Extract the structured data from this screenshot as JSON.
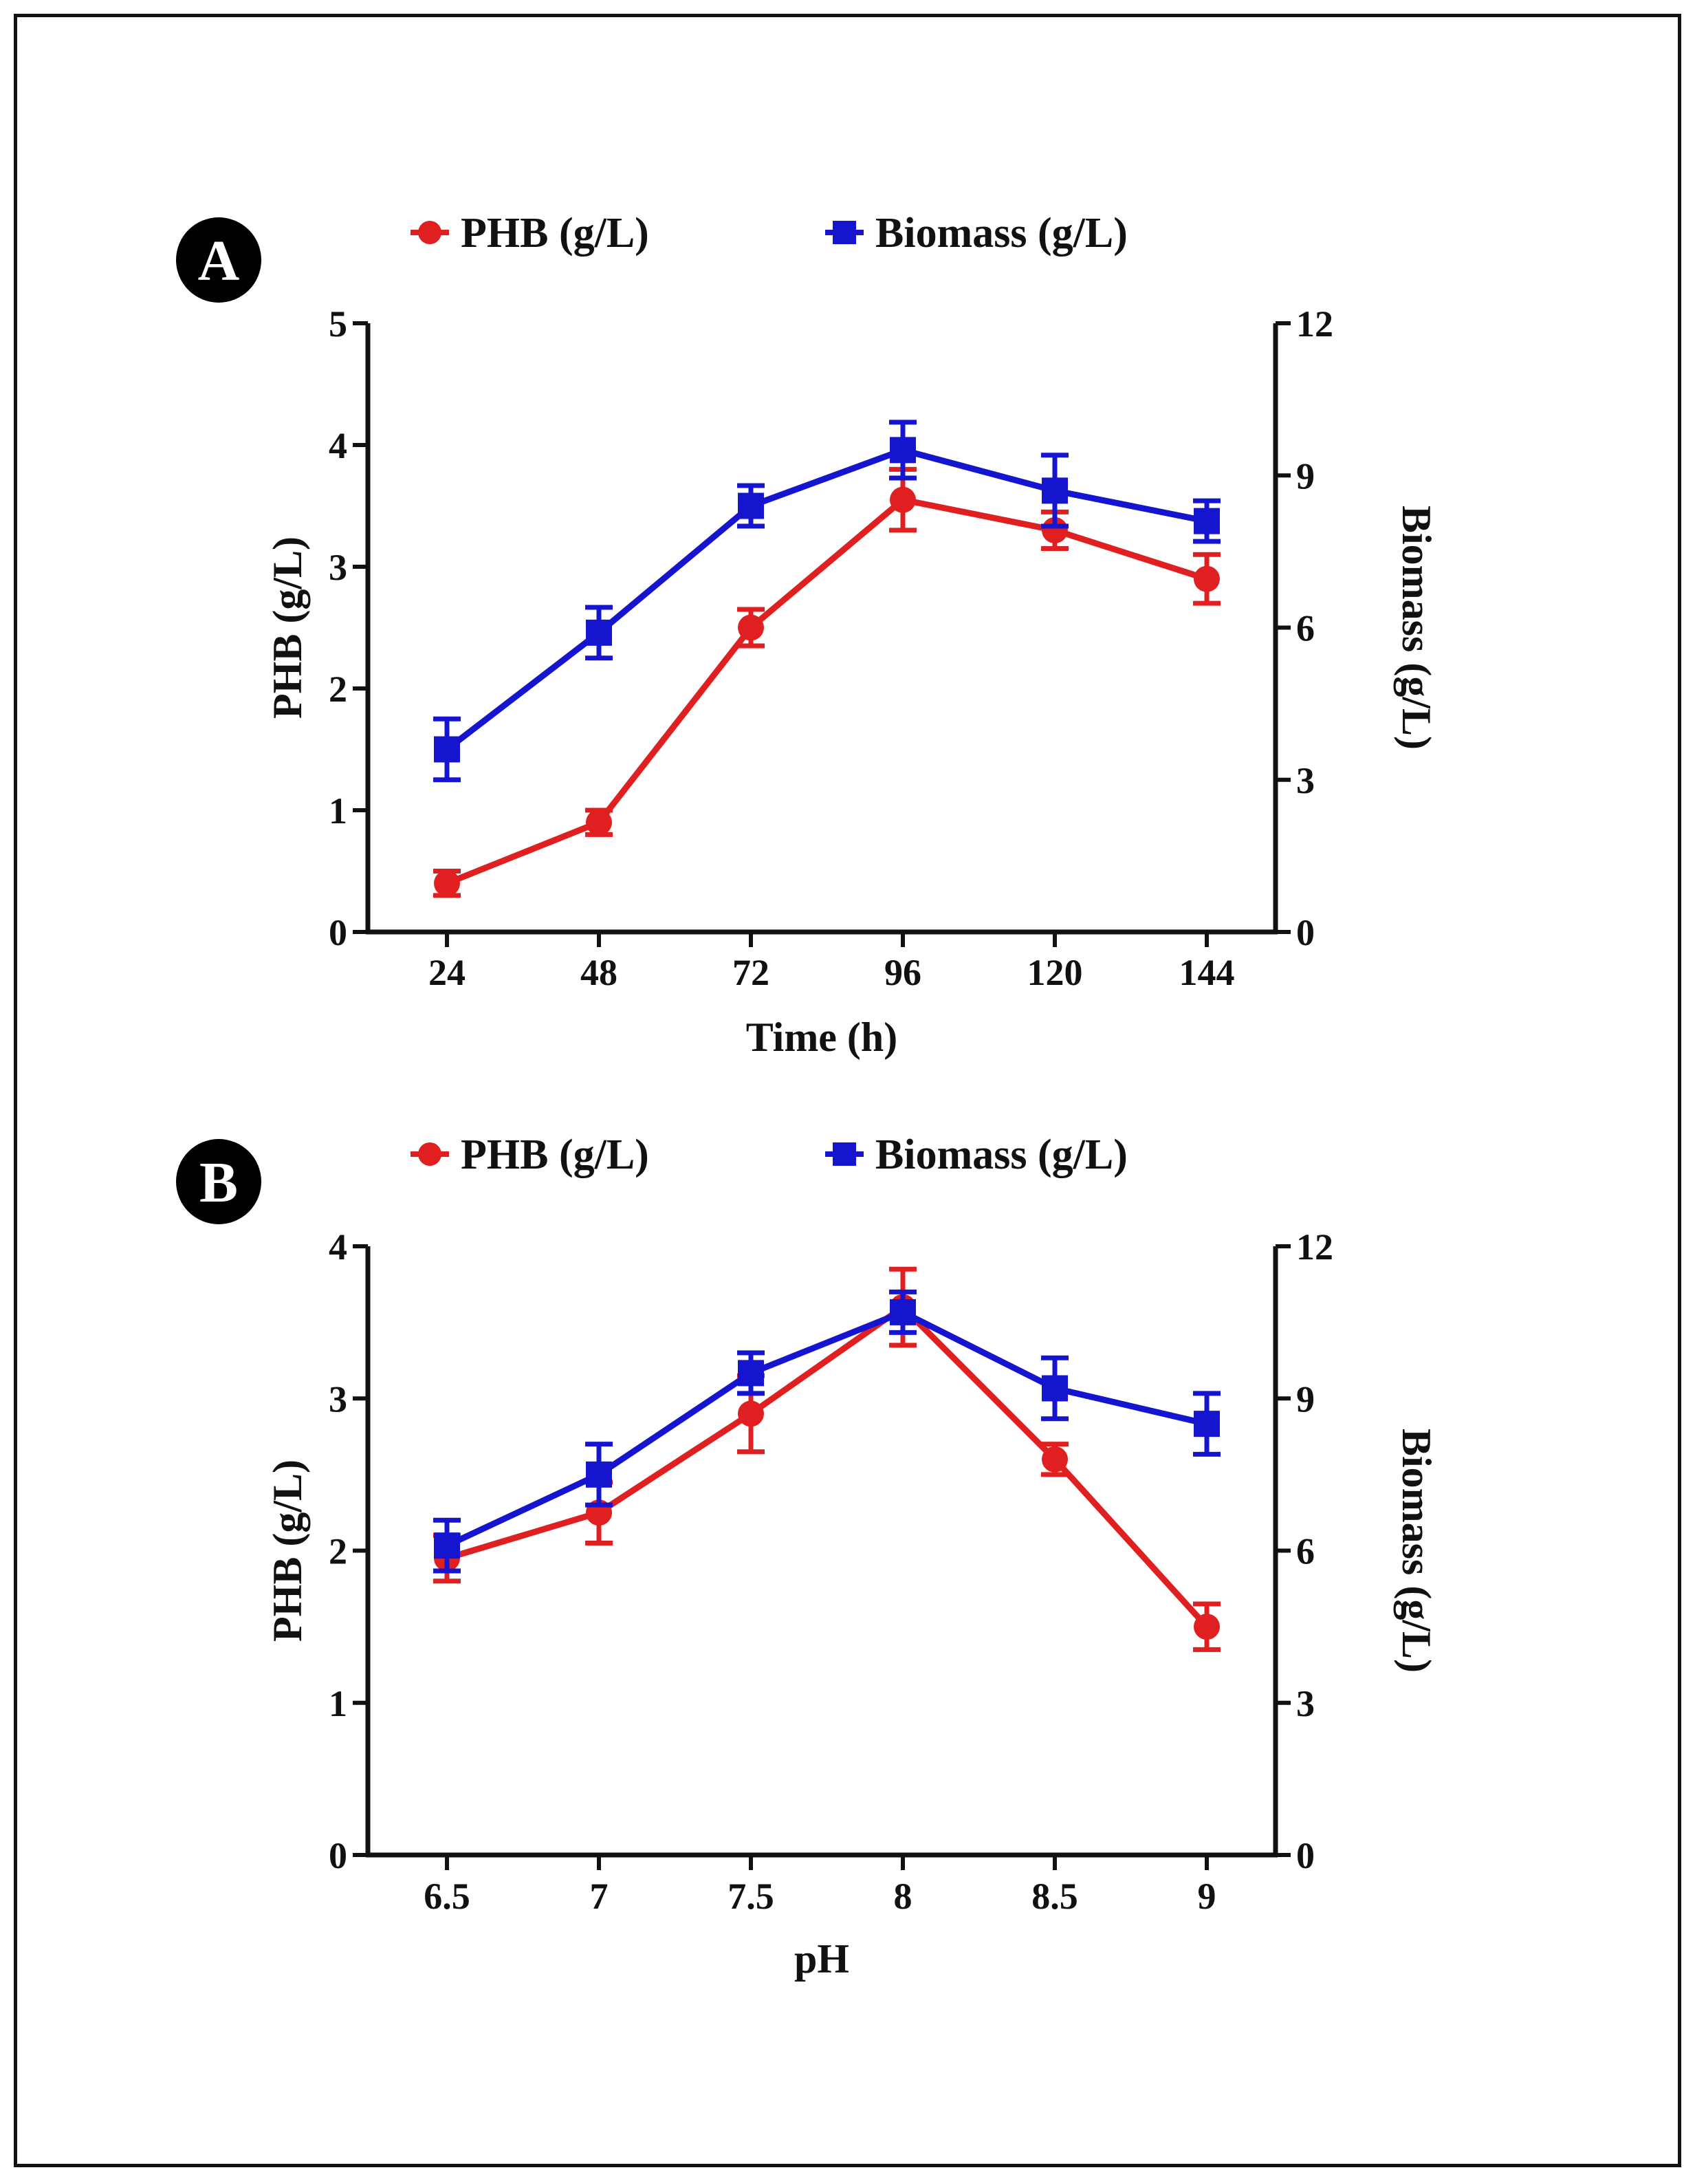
{
  "colors": {
    "phb": "#e02020",
    "biomass": "#1515d0",
    "axis": "#111111"
  },
  "chart_data": [
    {
      "panel_label": "A",
      "type": "line",
      "xlabel": "Time (h)",
      "ylabel": "PHB (g/L)",
      "y2label": "Biomass (g/L)",
      "categories": [
        "24",
        "48",
        "72",
        "96",
        "120",
        "144"
      ],
      "ylim": [
        0,
        5
      ],
      "yticks": [
        "0",
        "1",
        "2",
        "3",
        "4",
        "5"
      ],
      "y2lim": [
        0,
        12
      ],
      "y2ticks": [
        "0",
        "3",
        "6",
        "9",
        "12"
      ],
      "legend": [
        "PHB (g/L)",
        "Biomass (g/L)"
      ],
      "series": [
        {
          "name": "PHB (g/L)",
          "axis": "left",
          "marker": "circle",
          "color": "#e02020",
          "values": [
            0.4,
            0.9,
            2.5,
            3.55,
            3.3,
            2.9
          ],
          "errors": [
            0.1,
            0.1,
            0.15,
            0.25,
            0.15,
            0.2
          ]
        },
        {
          "name": "Biomass (g/L)",
          "axis": "right",
          "marker": "square",
          "color": "#1515d0",
          "values": [
            3.6,
            5.9,
            8.4,
            9.5,
            8.7,
            8.1
          ],
          "errors": [
            0.6,
            0.5,
            0.4,
            0.55,
            0.7,
            0.4
          ]
        }
      ]
    },
    {
      "panel_label": "B",
      "type": "line",
      "xlabel": "pH",
      "ylabel": "PHB (g/L)",
      "y2label": "Biomass (g/L)",
      "categories": [
        "6.5",
        "7",
        "7.5",
        "8",
        "8.5",
        "9"
      ],
      "ylim": [
        0,
        4
      ],
      "yticks": [
        "0",
        "1",
        "2",
        "3",
        "4"
      ],
      "y2lim": [
        0,
        12
      ],
      "y2ticks": [
        "0",
        "3",
        "6",
        "9",
        "12"
      ],
      "legend": [
        "PHB (g/L)",
        "Biomass (g/L)"
      ],
      "series": [
        {
          "name": "PHB (g/L)",
          "axis": "left",
          "marker": "circle",
          "color": "#e02020",
          "values": [
            1.95,
            2.25,
            2.9,
            3.6,
            2.6,
            1.5
          ],
          "errors": [
            0.15,
            0.2,
            0.25,
            0.25,
            0.1,
            0.15
          ]
        },
        {
          "name": "Biomass (g/L)",
          "axis": "right",
          "marker": "square",
          "color": "#1515d0",
          "values": [
            6.1,
            7.5,
            9.5,
            10.7,
            9.2,
            8.5
          ],
          "errors": [
            0.5,
            0.6,
            0.4,
            0.4,
            0.6,
            0.6
          ]
        }
      ]
    }
  ]
}
